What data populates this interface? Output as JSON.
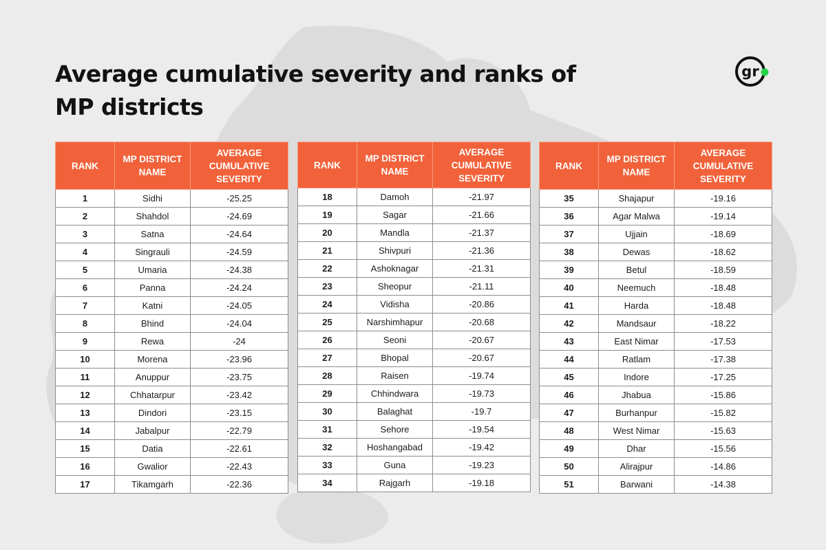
{
  "title": "Average cumulative severity and ranks of MP districts",
  "logo": {
    "text": "gr",
    "accent_color": "#27d24a"
  },
  "colors": {
    "header": "#f1623a",
    "background": "#ececec",
    "map": "#d9d9d9"
  },
  "headers": {
    "rank": "RANK",
    "district": "MP DISTRICT NAME",
    "severity": "AVERAGE CUMULATIVE SEVERITY"
  },
  "tables": [
    {
      "rows": [
        {
          "rank": "1",
          "district": "Sidhi",
          "severity": "-25.25"
        },
        {
          "rank": "2",
          "district": "Shahdol",
          "severity": "-24.69"
        },
        {
          "rank": "3",
          "district": "Satna",
          "severity": "-24.64"
        },
        {
          "rank": "4",
          "district": "Singrauli",
          "severity": "-24.59"
        },
        {
          "rank": "5",
          "district": "Umaria",
          "severity": "-24.38"
        },
        {
          "rank": "6",
          "district": "Panna",
          "severity": "-24.24"
        },
        {
          "rank": "7",
          "district": "Katni",
          "severity": "-24.05"
        },
        {
          "rank": "8",
          "district": "Bhind",
          "severity": "-24.04"
        },
        {
          "rank": "9",
          "district": "Rewa",
          "severity": "-24"
        },
        {
          "rank": "10",
          "district": "Morena",
          "severity": "-23.96"
        },
        {
          "rank": "11",
          "district": "Anuppur",
          "severity": "-23.75"
        },
        {
          "rank": "12",
          "district": "Chhatarpur",
          "severity": "-23.42"
        },
        {
          "rank": "13",
          "district": "Dindori",
          "severity": "-23.15"
        },
        {
          "rank": "14",
          "district": "Jabalpur",
          "severity": "-22.79"
        },
        {
          "rank": "15",
          "district": "Datia",
          "severity": "-22.61"
        },
        {
          "rank": "16",
          "district": "Gwalior",
          "severity": "-22.43"
        },
        {
          "rank": "17",
          "district": "Tikamgarh",
          "severity": "-22.36"
        }
      ]
    },
    {
      "rows": [
        {
          "rank": "18",
          "district": "Damoh",
          "severity": "-21.97"
        },
        {
          "rank": "19",
          "district": "Sagar",
          "severity": "-21.66"
        },
        {
          "rank": "20",
          "district": "Mandla",
          "severity": "-21.37"
        },
        {
          "rank": "21",
          "district": "Shivpuri",
          "severity": "-21.36"
        },
        {
          "rank": "22",
          "district": "Ashoknagar",
          "severity": "-21.31"
        },
        {
          "rank": "23",
          "district": "Sheopur",
          "severity": "-21.11"
        },
        {
          "rank": "24",
          "district": "Vidisha",
          "severity": "-20.86"
        },
        {
          "rank": "25",
          "district": "Narshimhapur",
          "severity": "-20.68"
        },
        {
          "rank": "26",
          "district": "Seoni",
          "severity": "-20.67"
        },
        {
          "rank": "27",
          "district": "Bhopal",
          "severity": "-20.67"
        },
        {
          "rank": "28",
          "district": "Raisen",
          "severity": "-19.74"
        },
        {
          "rank": "29",
          "district": "Chhindwara",
          "severity": "-19.73"
        },
        {
          "rank": "30",
          "district": "Balaghat",
          "severity": "-19.7"
        },
        {
          "rank": "31",
          "district": "Sehore",
          "severity": "-19.54"
        },
        {
          "rank": "32",
          "district": "Hoshangabad",
          "severity": "-19.42"
        },
        {
          "rank": "33",
          "district": "Guna",
          "severity": "-19.23"
        },
        {
          "rank": "34",
          "district": "Rajgarh",
          "severity": "-19.18"
        }
      ]
    },
    {
      "rows": [
        {
          "rank": "35",
          "district": "Shajapur",
          "severity": "-19.16"
        },
        {
          "rank": "36",
          "district": "Agar Malwa",
          "severity": "-19.14"
        },
        {
          "rank": "37",
          "district": "Ujjain",
          "severity": "-18.69"
        },
        {
          "rank": "38",
          "district": "Dewas",
          "severity": "-18.62"
        },
        {
          "rank": "39",
          "district": "Betul",
          "severity": "-18.59"
        },
        {
          "rank": "40",
          "district": "Neemuch",
          "severity": "-18.48"
        },
        {
          "rank": "41",
          "district": "Harda",
          "severity": "-18.48"
        },
        {
          "rank": "42",
          "district": "Mandsaur",
          "severity": "-18.22"
        },
        {
          "rank": "43",
          "district": "East Nimar",
          "severity": "-17.53"
        },
        {
          "rank": "44",
          "district": "Ratlam",
          "severity": "-17.38"
        },
        {
          "rank": "45",
          "district": "Indore",
          "severity": "-17.25"
        },
        {
          "rank": "46",
          "district": "Jhabua",
          "severity": "-15.86"
        },
        {
          "rank": "47",
          "district": "Burhanpur",
          "severity": "-15.82"
        },
        {
          "rank": "48",
          "district": "West Nimar",
          "severity": "-15.63"
        },
        {
          "rank": "49",
          "district": "Dhar",
          "severity": "-15.56"
        },
        {
          "rank": "50",
          "district": "Alirajpur",
          "severity": "-14.86"
        },
        {
          "rank": "51",
          "district": "Barwani",
          "severity": "-14.38"
        }
      ]
    }
  ]
}
